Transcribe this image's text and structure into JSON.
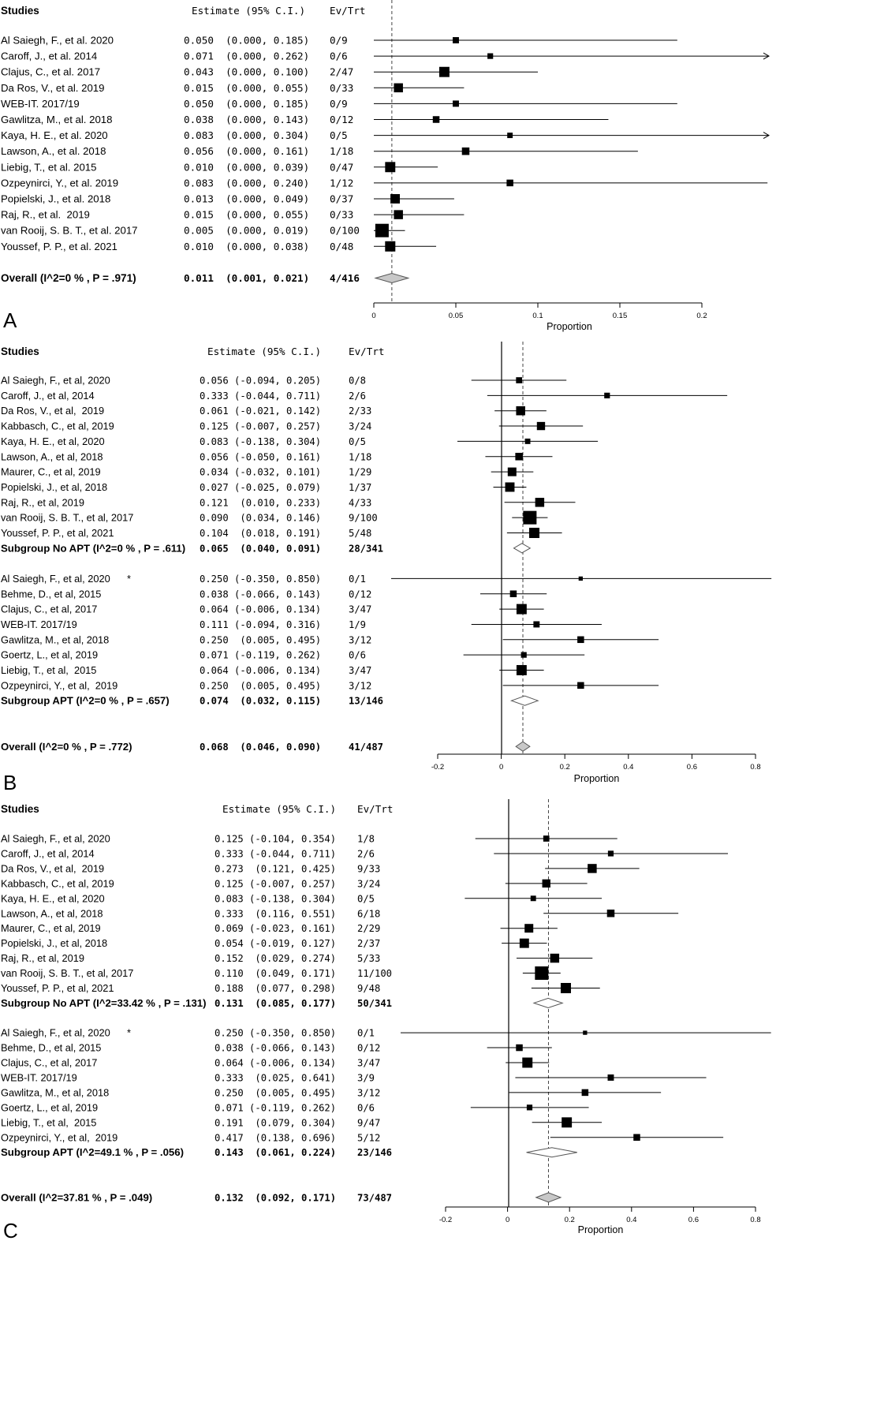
{
  "chart_data": [
    {
      "type": "forest",
      "panel_label": "A",
      "header": {
        "studies": "Studies",
        "estimate": "Estimate (95% C.I.)",
        "evtrt": "Ev/Trt"
      },
      "xlabel": "Proportion",
      "xlim": [
        0,
        0.2
      ],
      "xticks": [
        "0",
        "0.05",
        "0.1",
        "0.15",
        "0.2"
      ],
      "reference_line": 0.011,
      "groups": [
        {
          "studies": [
            {
              "label": "Al Saiegh, F., et al. 2020",
              "estimate_text": "0.050  (0.000, 0.185)",
              "evtrt": "0/9",
              "est": 0.05,
              "lo": 0.0,
              "hi": 0.185
            },
            {
              "label": "Caroff, J., et al. 2014",
              "estimate_text": "0.071  (0.000, 0.262)",
              "evtrt": "0/6",
              "est": 0.071,
              "lo": 0.0,
              "hi": 0.262
            },
            {
              "label": "Clajus, C., et al. 2017",
              "estimate_text": "0.043  (0.000, 0.100)",
              "evtrt": "2/47",
              "est": 0.043,
              "lo": 0.0,
              "hi": 0.1
            },
            {
              "label": "Da Ros, V., et al. 2019",
              "estimate_text": "0.015  (0.000, 0.055)",
              "evtrt": "0/33",
              "est": 0.015,
              "lo": 0.0,
              "hi": 0.055
            },
            {
              "label": "WEB-IT. 2017/19",
              "estimate_text": "0.050  (0.000, 0.185)",
              "evtrt": "0/9",
              "est": 0.05,
              "lo": 0.0,
              "hi": 0.185
            },
            {
              "label": "Gawlitza, M., et al. 2018",
              "estimate_text": "0.038  (0.000, 0.143)",
              "evtrt": "0/12",
              "est": 0.038,
              "lo": 0.0,
              "hi": 0.143
            },
            {
              "label": "Kaya, H. E., et al. 2020",
              "estimate_text": "0.083  (0.000, 0.304)",
              "evtrt": "0/5",
              "est": 0.083,
              "lo": 0.0,
              "hi": 0.304
            },
            {
              "label": "Lawson, A., et al. 2018",
              "estimate_text": "0.056  (0.000, 0.161)",
              "evtrt": "1/18",
              "est": 0.056,
              "lo": 0.0,
              "hi": 0.161
            },
            {
              "label": "Liebig, T., et al. 2015",
              "estimate_text": "0.010  (0.000, 0.039)",
              "evtrt": "0/47",
              "est": 0.01,
              "lo": 0.0,
              "hi": 0.039
            },
            {
              "label": "Ozpeynirci, Y., et al. 2019",
              "estimate_text": "0.083  (0.000, 0.240)",
              "evtrt": "1/12",
              "est": 0.083,
              "lo": 0.0,
              "hi": 0.24
            },
            {
              "label": "Popielski, J., et al. 2018",
              "estimate_text": "0.013  (0.000, 0.049)",
              "evtrt": "0/37",
              "est": 0.013,
              "lo": 0.0,
              "hi": 0.049
            },
            {
              "label": "Raj, R., et al.  2019",
              "estimate_text": "0.015  (0.000, 0.055)",
              "evtrt": "0/33",
              "est": 0.015,
              "lo": 0.0,
              "hi": 0.055
            },
            {
              "label": "van Rooij, S. B. T., et al. 2017",
              "estimate_text": "0.005  (0.000, 0.019)",
              "evtrt": "0/100",
              "est": 0.005,
              "lo": 0.0,
              "hi": 0.019
            },
            {
              "label": "Youssef, P. P., et al. 2021",
              "estimate_text": "0.010  (0.000, 0.038)",
              "evtrt": "0/48",
              "est": 0.01,
              "lo": 0.0,
              "hi": 0.038
            }
          ],
          "summary": null
        }
      ],
      "overall": {
        "label": "Overall (I^2=0 % , P = .971)",
        "estimate_text": "0.011  (0.001, 0.021)",
        "evtrt": "4/416",
        "est": 0.011,
        "lo": 0.001,
        "hi": 0.021
      }
    },
    {
      "type": "forest",
      "panel_label": "B",
      "header": {
        "studies": "Studies",
        "estimate": "Estimate (95% C.I.)",
        "evtrt": "Ev/Trt"
      },
      "xlabel": "Proportion",
      "xlim": [
        -0.2,
        0.8
      ],
      "xticks": [
        "-0.2",
        "0",
        "0.2",
        "0.4",
        "0.6",
        "0.8"
      ],
      "reference_line": 0.068,
      "groups": [
        {
          "studies": [
            {
              "label": "Al Saiegh, F., et al, 2020",
              "estimate_text": "0.056 (-0.094, 0.205)",
              "evtrt": "0/8",
              "est": 0.056,
              "lo": -0.094,
              "hi": 0.205
            },
            {
              "label": "Caroff, J., et al, 2014",
              "estimate_text": "0.333 (-0.044, 0.711)",
              "evtrt": "2/6",
              "est": 0.333,
              "lo": -0.044,
              "hi": 0.711
            },
            {
              "label": "Da Ros, V., et al,  2019",
              "estimate_text": "0.061 (-0.021, 0.142)",
              "evtrt": "2/33",
              "est": 0.061,
              "lo": -0.021,
              "hi": 0.142
            },
            {
              "label": "Kabbasch, C., et al, 2019",
              "estimate_text": "0.125 (-0.007, 0.257)",
              "evtrt": "3/24",
              "est": 0.125,
              "lo": -0.007,
              "hi": 0.257
            },
            {
              "label": "Kaya, H. E., et al, 2020",
              "estimate_text": "0.083 (-0.138, 0.304)",
              "evtrt": "0/5",
              "est": 0.083,
              "lo": -0.138,
              "hi": 0.304
            },
            {
              "label": "Lawson, A., et al, 2018",
              "estimate_text": "0.056 (-0.050, 0.161)",
              "evtrt": "1/18",
              "est": 0.056,
              "lo": -0.05,
              "hi": 0.161
            },
            {
              "label": "Maurer, C., et al, 2019",
              "estimate_text": "0.034 (-0.032, 0.101)",
              "evtrt": "1/29",
              "est": 0.034,
              "lo": -0.032,
              "hi": 0.101
            },
            {
              "label": "Popielski, J., et al, 2018",
              "estimate_text": "0.027 (-0.025, 0.079)",
              "evtrt": "1/37",
              "est": 0.027,
              "lo": -0.025,
              "hi": 0.079
            },
            {
              "label": "Raj, R., et al, 2019",
              "estimate_text": "0.121  (0.010, 0.233)",
              "evtrt": "4/33",
              "est": 0.121,
              "lo": 0.01,
              "hi": 0.233
            },
            {
              "label": "van Rooij, S. B. T., et al, 2017",
              "estimate_text": "0.090  (0.034, 0.146)",
              "evtrt": "9/100",
              "est": 0.09,
              "lo": 0.034,
              "hi": 0.146
            },
            {
              "label": "Youssef, P. P., et al, 2021",
              "estimate_text": "0.104  (0.018, 0.191)",
              "evtrt": "5/48",
              "est": 0.104,
              "lo": 0.018,
              "hi": 0.191
            }
          ],
          "summary": {
            "label": "Subgroup No APT (I^2=0 % , P = .611)",
            "estimate_text": "0.065  (0.040, 0.091)",
            "evtrt": "28/341",
            "est": 0.065,
            "lo": 0.04,
            "hi": 0.091
          }
        },
        {
          "studies": [
            {
              "label": "Al Saiegh, F., et al, 2020      *",
              "estimate_text": "0.250 (-0.350, 0.850)",
              "evtrt": "0/1",
              "est": 0.25,
              "lo": -0.35,
              "hi": 0.85
            },
            {
              "label": "Behme, D., et al, 2015",
              "estimate_text": "0.038 (-0.066, 0.143)",
              "evtrt": "0/12",
              "est": 0.038,
              "lo": -0.066,
              "hi": 0.143
            },
            {
              "label": "Clajus, C., et al, 2017",
              "estimate_text": "0.064 (-0.006, 0.134)",
              "evtrt": "3/47",
              "est": 0.064,
              "lo": -0.006,
              "hi": 0.134
            },
            {
              "label": "WEB-IT. 2017/19",
              "estimate_text": "0.111 (-0.094, 0.316)",
              "evtrt": "1/9",
              "est": 0.111,
              "lo": -0.094,
              "hi": 0.316
            },
            {
              "label": "Gawlitza, M., et al, 2018",
              "estimate_text": "0.250  (0.005, 0.495)",
              "evtrt": "3/12",
              "est": 0.25,
              "lo": 0.005,
              "hi": 0.495
            },
            {
              "label": "Goertz, L., et al, 2019",
              "estimate_text": "0.071 (-0.119, 0.262)",
              "evtrt": "0/6",
              "est": 0.071,
              "lo": -0.119,
              "hi": 0.262
            },
            {
              "label": "Liebig, T., et al,  2015",
              "estimate_text": "0.064 (-0.006, 0.134)",
              "evtrt": "3/47",
              "est": 0.064,
              "lo": -0.006,
              "hi": 0.134
            },
            {
              "label": "Ozpeynirci, Y., et al,  2019",
              "estimate_text": "0.250  (0.005, 0.495)",
              "evtrt": "3/12",
              "est": 0.25,
              "lo": 0.005,
              "hi": 0.495
            }
          ],
          "summary": {
            "label": "Subgroup APT (I^2=0 % , P = .657)",
            "estimate_text": "0.074  (0.032, 0.115)",
            "evtrt": "13/146",
            "est": 0.074,
            "lo": 0.032,
            "hi": 0.115
          }
        }
      ],
      "overall": {
        "label": "Overall (I^2=0 % , P = .772)",
        "estimate_text": "0.068  (0.046, 0.090)",
        "evtrt": "41/487",
        "est": 0.068,
        "lo": 0.046,
        "hi": 0.09
      }
    },
    {
      "type": "forest",
      "panel_label": "C",
      "header": {
        "studies": "Studies",
        "estimate": "Estimate (95% C.I.)",
        "evtrt": "Ev/Trt"
      },
      "xlabel": "Proportion",
      "xlim": [
        -0.2,
        0.8
      ],
      "xticks": [
        "-0.2",
        "0",
        "0.2",
        "0.4",
        "0.6",
        "0.8"
      ],
      "reference_line": 0.132,
      "groups": [
        {
          "studies": [
            {
              "label": "Al Saiegh, F., et al, 2020",
              "estimate_text": "0.125 (-0.104, 0.354)",
              "evtrt": "1/8",
              "est": 0.125,
              "lo": -0.104,
              "hi": 0.354
            },
            {
              "label": "Caroff, J., et al, 2014",
              "estimate_text": "0.333 (-0.044, 0.711)",
              "evtrt": "2/6",
              "est": 0.333,
              "lo": -0.044,
              "hi": 0.711
            },
            {
              "label": "Da Ros, V., et al,  2019",
              "estimate_text": "0.273  (0.121, 0.425)",
              "evtrt": "9/33",
              "est": 0.273,
              "lo": 0.121,
              "hi": 0.425
            },
            {
              "label": "Kabbasch, C., et al, 2019",
              "estimate_text": "0.125 (-0.007, 0.257)",
              "evtrt": "3/24",
              "est": 0.125,
              "lo": -0.007,
              "hi": 0.257
            },
            {
              "label": "Kaya, H. E., et al, 2020",
              "estimate_text": "0.083 (-0.138, 0.304)",
              "evtrt": "0/5",
              "est": 0.083,
              "lo": -0.138,
              "hi": 0.304
            },
            {
              "label": "Lawson, A., et al, 2018",
              "estimate_text": "0.333  (0.116, 0.551)",
              "evtrt": "6/18",
              "est": 0.333,
              "lo": 0.116,
              "hi": 0.551
            },
            {
              "label": "Maurer, C., et al, 2019",
              "estimate_text": "0.069 (-0.023, 0.161)",
              "evtrt": "2/29",
              "est": 0.069,
              "lo": -0.023,
              "hi": 0.161
            },
            {
              "label": "Popielski, J., et al, 2018",
              "estimate_text": "0.054 (-0.019, 0.127)",
              "evtrt": "2/37",
              "est": 0.054,
              "lo": -0.019,
              "hi": 0.127
            },
            {
              "label": "Raj, R., et al, 2019",
              "estimate_text": "0.152  (0.029, 0.274)",
              "evtrt": "5/33",
              "est": 0.152,
              "lo": 0.029,
              "hi": 0.274
            },
            {
              "label": "van Rooij, S. B. T., et al, 2017",
              "estimate_text": "0.110  (0.049, 0.171)",
              "evtrt": "11/100",
              "est": 0.11,
              "lo": 0.049,
              "hi": 0.171
            },
            {
              "label": "Youssef, P. P., et al, 2021",
              "estimate_text": "0.188  (0.077, 0.298)",
              "evtrt": "9/48",
              "est": 0.188,
              "lo": 0.077,
              "hi": 0.298
            }
          ],
          "summary": {
            "label": "Subgroup No APT (I^2=33.42 % , P = .131)",
            "estimate_text": "0.131  (0.085, 0.177)",
            "evtrt": "50/341",
            "est": 0.131,
            "lo": 0.085,
            "hi": 0.177
          }
        },
        {
          "studies": [
            {
              "label": "Al Saiegh, F., et al, 2020      *",
              "estimate_text": "0.250 (-0.350, 0.850)",
              "evtrt": "0/1",
              "est": 0.25,
              "lo": -0.35,
              "hi": 0.85
            },
            {
              "label": "Behme, D., et al, 2015",
              "estimate_text": "0.038 (-0.066, 0.143)",
              "evtrt": "0/12",
              "est": 0.038,
              "lo": -0.066,
              "hi": 0.143
            },
            {
              "label": "Clajus, C., et al, 2017",
              "estimate_text": "0.064 (-0.006, 0.134)",
              "evtrt": "3/47",
              "est": 0.064,
              "lo": -0.006,
              "hi": 0.134
            },
            {
              "label": "WEB-IT. 2017/19",
              "estimate_text": "0.333  (0.025, 0.641)",
              "evtrt": "3/9",
              "est": 0.333,
              "lo": 0.025,
              "hi": 0.641
            },
            {
              "label": "Gawlitza, M., et al, 2018",
              "estimate_text": "0.250  (0.005, 0.495)",
              "evtrt": "3/12",
              "est": 0.25,
              "lo": 0.005,
              "hi": 0.495
            },
            {
              "label": "Goertz, L., et al, 2019",
              "estimate_text": "0.071 (-0.119, 0.262)",
              "evtrt": "0/6",
              "est": 0.071,
              "lo": -0.119,
              "hi": 0.262
            },
            {
              "label": "Liebig, T., et al,  2015",
              "estimate_text": "0.191  (0.079, 0.304)",
              "evtrt": "9/47",
              "est": 0.191,
              "lo": 0.079,
              "hi": 0.304
            },
            {
              "label": "Ozpeynirci, Y., et al,  2019",
              "estimate_text": "0.417  (0.138, 0.696)",
              "evtrt": "5/12",
              "est": 0.417,
              "lo": 0.138,
              "hi": 0.696
            }
          ],
          "summary": {
            "label": "Subgroup APT (I^2=49.1 % , P = .056)",
            "estimate_text": "0.143  (0.061, 0.224)",
            "evtrt": "23/146",
            "est": 0.143,
            "lo": 0.061,
            "hi": 0.224
          }
        }
      ],
      "overall": {
        "label": "Overall (I^2=37.81 % , P = .049)",
        "estimate_text": "0.132  (0.092, 0.171)",
        "evtrt": "73/487",
        "est": 0.132,
        "lo": 0.092,
        "hi": 0.171
      }
    }
  ]
}
